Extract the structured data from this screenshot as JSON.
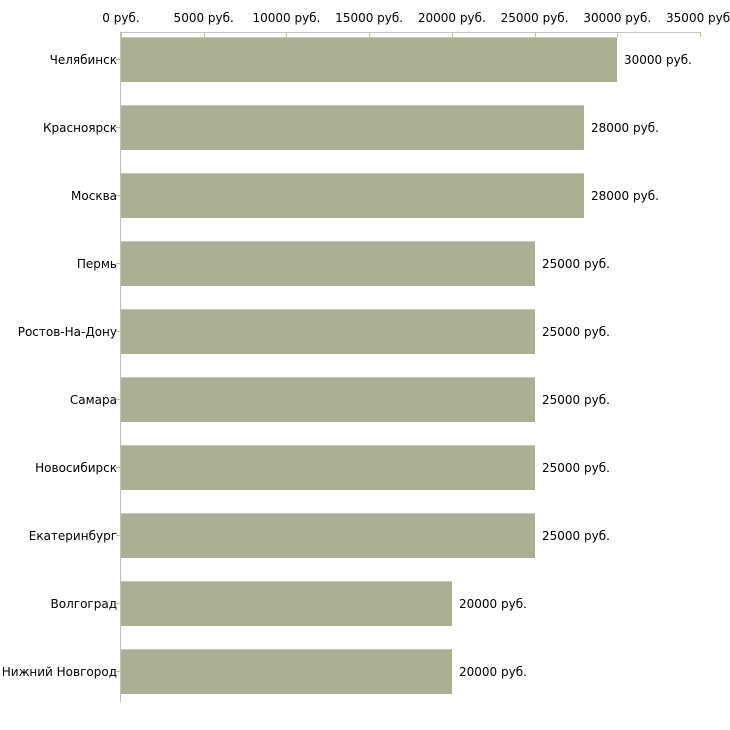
{
  "chart_data": {
    "type": "bar",
    "orientation": "horizontal",
    "title": "",
    "categories": [
      "Челябинск",
      "Красноярск",
      "Москва",
      "Пермь",
      "Ростов-На-Дону",
      "Самара",
      "Новосибирск",
      "Екатеринбург",
      "Волгоград",
      "Нижний Новгород"
    ],
    "values": [
      30000,
      28000,
      28000,
      25000,
      25000,
      25000,
      25000,
      25000,
      20000,
      20000
    ],
    "value_labels": [
      "30000 руб.",
      "28000 руб.",
      "28000 руб.",
      "25000 руб.",
      "25000 руб.",
      "25000 руб.",
      "25000 руб.",
      "25000 руб.",
      "20000 руб.",
      "20000 руб."
    ],
    "x_axis": {
      "position": "top",
      "xlim": [
        0,
        35000
      ],
      "ticks": [
        0,
        5000,
        10000,
        15000,
        20000,
        25000,
        30000,
        35000
      ],
      "tick_labels": [
        "0 руб.",
        "5000 руб.",
        "10000 руб.",
        "15000 руб.",
        "20000 руб.",
        "25000 руб.",
        "30000 руб.",
        "35000 руб."
      ]
    },
    "grid": false,
    "legend": false,
    "colors": {
      "bar_fill": "#abb094",
      "bar_top_edge": "#c6c9ba",
      "axis_line": "#c6c6c6",
      "y_axis_line": "#bfbfbf",
      "tick_mark": "#c2c29a",
      "label_text": "#000000",
      "background": "#ffffff"
    }
  }
}
